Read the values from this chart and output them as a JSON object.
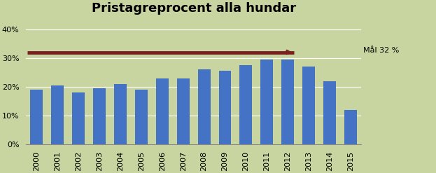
{
  "title": "Pristagreprocent alla hundar",
  "categories": [
    "2000",
    "2001",
    "2002",
    "2003",
    "2004",
    "2005",
    "2006",
    "2007",
    "2008",
    "2009",
    "2010",
    "2011",
    "2012",
    "2013",
    "2014",
    "2015"
  ],
  "values": [
    0.19,
    0.205,
    0.18,
    0.195,
    0.21,
    0.19,
    0.23,
    0.23,
    0.26,
    0.255,
    0.275,
    0.295,
    0.295,
    0.27,
    0.22,
    0.12
  ],
  "bar_color": "#4472C4",
  "bg_color": "#C9D5A0",
  "target_line_y": 0.32,
  "target_line_color": "#7B2020",
  "target_label": "Mål 32 %",
  "ylim": [
    0,
    0.44
  ],
  "yticks": [
    0.0,
    0.1,
    0.2,
    0.3,
    0.4
  ],
  "ytick_labels": [
    "0%",
    "10%",
    "20%",
    "30%",
    "40%"
  ],
  "title_fontsize": 13,
  "tick_fontsize": 8,
  "label_fontsize": 8
}
